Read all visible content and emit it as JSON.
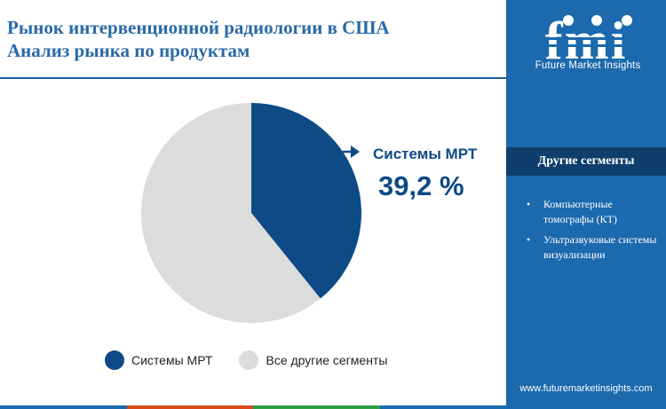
{
  "header": {
    "title_line1": "Рынок интервенционной радиологии в США",
    "title_line2": "Анализ рынка по продуктам"
  },
  "callout": {
    "label": "Системы МРТ",
    "value": "39,2 %"
  },
  "chart_data": {
    "type": "pie",
    "slices": [
      {
        "name": "Системы МРТ",
        "value": 39.2,
        "color": "#0d4a86"
      },
      {
        "name": "Все другие сегменты",
        "value": 60.8,
        "color": "#dcdcdc"
      }
    ],
    "legend_position": "bottom"
  },
  "side_panel": {
    "logo_text": "Future Market Insights",
    "heading": "Другие сегменты",
    "items": [
      "Компьютерные томографы (КТ)",
      "Ультразвуковые системы визуализации"
    ],
    "url": "www.futuremarketinsights.com"
  },
  "colors": {
    "accent": "#1c69ad",
    "dark_blue": "#0d4a86",
    "panel_heading": "#0f3e6c",
    "light_gray": "#dcdcdc",
    "bottom_bar": [
      "#1c69ad",
      "#d84a1b",
      "#2f9e44",
      "#1c69ad"
    ]
  }
}
